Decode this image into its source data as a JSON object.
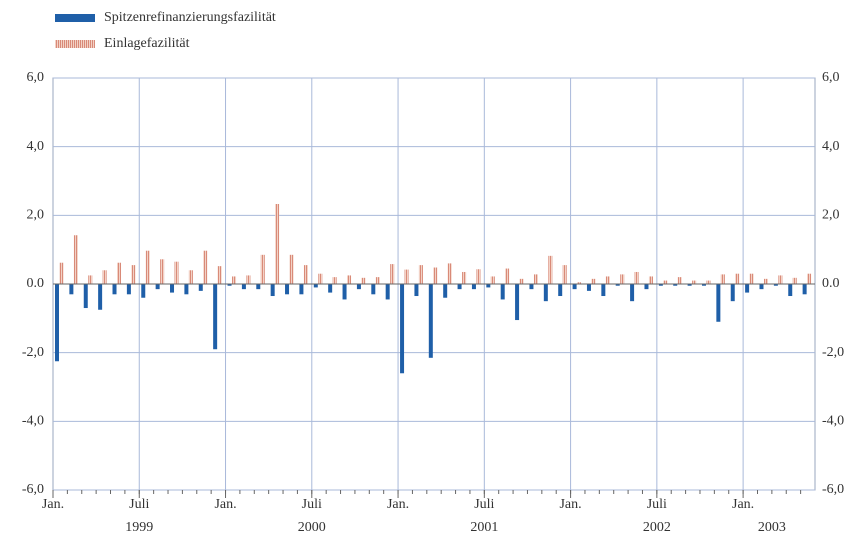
{
  "chart_data": {
    "type": "bar",
    "categories": [
      "Jan.",
      null,
      null,
      null,
      null,
      null,
      "Juli",
      null,
      null,
      null,
      null,
      null,
      "Jan.",
      null,
      null,
      null,
      null,
      null,
      "Juli",
      null,
      null,
      null,
      null,
      null,
      "Jan.",
      null,
      null,
      null,
      null,
      null,
      "Juli",
      null,
      null,
      null,
      null,
      null,
      "Jan.",
      null,
      null,
      null,
      null,
      null,
      "Juli",
      null,
      null,
      null,
      null,
      null,
      "Jan.",
      null,
      null,
      null,
      null
    ],
    "category_years": [
      null,
      null,
      null,
      null,
      null,
      null,
      "1999",
      null,
      null,
      null,
      null,
      null,
      null,
      null,
      null,
      null,
      null,
      null,
      "2000",
      null,
      null,
      null,
      null,
      null,
      null,
      null,
      null,
      null,
      null,
      null,
      "2001",
      null,
      null,
      null,
      null,
      null,
      null,
      null,
      null,
      null,
      null,
      null,
      "2002",
      null,
      null,
      null,
      null,
      null,
      null,
      null,
      "2003",
      null,
      null
    ],
    "series": [
      {
        "name": "Spitzenrefinanzierungsfazilität",
        "color": "#1f5fa8",
        "values": [
          -2.25,
          -0.3,
          -0.7,
          -0.75,
          -0.3,
          -0.3,
          -0.4,
          -0.15,
          -0.25,
          -0.3,
          -0.2,
          -1.9,
          -0.05,
          -0.15,
          -0.15,
          -0.35,
          -0.3,
          -0.3,
          -0.1,
          -0.25,
          -0.45,
          -0.15,
          -0.3,
          -0.45,
          -2.6,
          -0.35,
          -2.15,
          -0.4,
          -0.15,
          -0.15,
          -0.1,
          -0.45,
          -1.05,
          -0.15,
          -0.5,
          -0.35,
          -0.15,
          -0.2,
          -0.35,
          -0.05,
          -0.5,
          -0.15,
          -0.05,
          -0.05,
          -0.05,
          -0.05,
          -1.1,
          -0.5,
          -0.25,
          -0.15,
          -0.05,
          -0.35,
          -0.3
        ]
      },
      {
        "name": "Einlagefazilität",
        "color": "#d98a78",
        "values": [
          0.62,
          1.42,
          0.25,
          0.4,
          0.62,
          0.55,
          0.97,
          0.72,
          0.65,
          0.4,
          0.97,
          0.52,
          0.22,
          0.25,
          0.85,
          2.33,
          0.85,
          0.55,
          0.3,
          0.2,
          0.25,
          0.18,
          0.2,
          0.58,
          0.42,
          0.55,
          0.48,
          0.6,
          0.35,
          0.43,
          0.22,
          0.45,
          0.15,
          0.28,
          0.82,
          0.55,
          0.05,
          0.15,
          0.22,
          0.28,
          0.35,
          0.22,
          0.1,
          0.2,
          0.1,
          0.1,
          0.28,
          0.3,
          0.3,
          0.15,
          0.25,
          0.18,
          0.3
        ]
      }
    ],
    "ylim": [
      -6,
      6
    ],
    "yticks": [
      {
        "value": 6,
        "label": "6,0"
      },
      {
        "value": 4,
        "label": "4,0"
      },
      {
        "value": 2,
        "label": "2,0"
      },
      {
        "value": 0,
        "label": "0.0"
      },
      {
        "value": -2,
        "label": "-2,0"
      },
      {
        "value": -4,
        "label": "-4,0"
      },
      {
        "value": -6,
        "label": "-6,0"
      }
    ],
    "grid": true,
    "legend": "top-left"
  }
}
